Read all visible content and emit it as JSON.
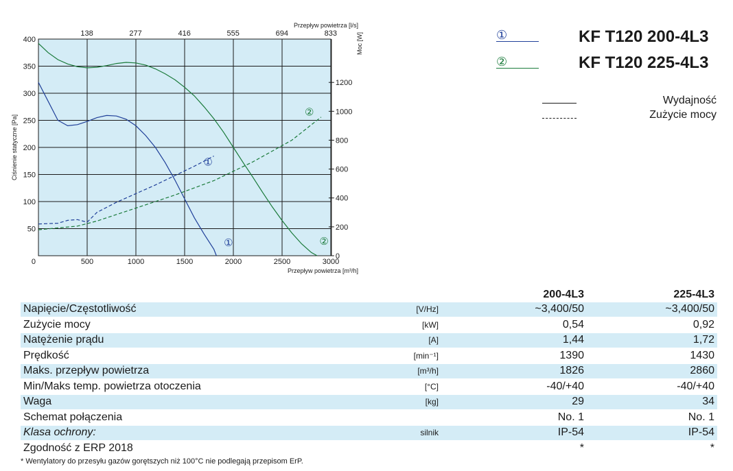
{
  "models": [
    {
      "marker": "①",
      "name": "KF T120 200-4L3",
      "color": "#1f3f99"
    },
    {
      "marker": "②",
      "name": "KF T120 225-4L3",
      "color": "#1a7a3a"
    }
  ],
  "legend": {
    "solid_label": "Wydajność",
    "dashed_label": "Zużycie mocy"
  },
  "chart_data": {
    "type": "line",
    "xlabel": "Przepływ powietrza [m³/h]",
    "x2label": "Przepływ powietrza [l/s]",
    "ylabel": "Ciśnienie statyczne [Pa]",
    "y2label": "Moc [W]",
    "xlim": [
      0,
      3000
    ],
    "ylim": [
      0,
      400
    ],
    "y2lim": [
      0,
      1500
    ],
    "x_ticks": [
      "0",
      "500",
      "1000",
      "1500",
      "2000",
      "2500",
      "3000"
    ],
    "x2_ticks": [
      "138",
      "277",
      "416",
      "555",
      "694",
      "833"
    ],
    "y_ticks": [
      "0",
      "50",
      "100",
      "150",
      "200",
      "250",
      "300",
      "350",
      "400"
    ],
    "y2_ticks": [
      "0",
      "200",
      "400",
      "600",
      "800",
      "1000",
      "1200"
    ],
    "grid": true,
    "background": "#d4ecf6",
    "series": [
      {
        "name": "①",
        "kind": "pressure",
        "style": "solid",
        "color": "#1f3f99",
        "x": [
          0,
          100,
          200,
          300,
          400,
          500,
          600,
          700,
          800,
          900,
          1000,
          1100,
          1200,
          1300,
          1400,
          1500,
          1600,
          1700,
          1800,
          1826
        ],
        "y": [
          320,
          285,
          250,
          240,
          242,
          248,
          255,
          259,
          258,
          252,
          240,
          222,
          200,
          172,
          140,
          105,
          70,
          40,
          12,
          0
        ]
      },
      {
        "name": "②",
        "kind": "pressure",
        "style": "solid",
        "color": "#1a7a3a",
        "x": [
          0,
          100,
          200,
          300,
          400,
          500,
          600,
          700,
          800,
          900,
          1000,
          1100,
          1200,
          1300,
          1400,
          1500,
          1600,
          1700,
          1800,
          1900,
          2000,
          2100,
          2200,
          2300,
          2400,
          2500,
          2600,
          2700,
          2800,
          2860
        ],
        "y": [
          392,
          375,
          362,
          354,
          349,
          347,
          348,
          351,
          355,
          357,
          356,
          352,
          345,
          336,
          325,
          311,
          295,
          275,
          253,
          228,
          200,
          172,
          145,
          117,
          90,
          65,
          42,
          22,
          6,
          0
        ]
      },
      {
        "name": "①",
        "kind": "power",
        "style": "dashed",
        "color": "#1f3f99",
        "x": [
          0,
          200,
          300,
          400,
          500,
          600,
          800,
          1000,
          1200,
          1400,
          1600,
          1800
        ],
        "y": [
          220,
          225,
          245,
          250,
          232,
          300,
          370,
          430,
          490,
          555,
          620,
          690
        ]
      },
      {
        "name": "②",
        "kind": "power",
        "style": "dashed",
        "color": "#1a7a3a",
        "x": [
          0,
          400,
          600,
          1000,
          1400,
          1800,
          2200,
          2600,
          2900
        ],
        "y": [
          180,
          205,
          240,
          330,
          420,
          520,
          650,
          800,
          960
        ]
      }
    ],
    "annotations": [
      {
        "text": "①",
        "x": 1740,
        "y": 195,
        "color": "#1f3f99"
      },
      {
        "text": "①",
        "x": 1950,
        "y": 18,
        "color": "#1f3f99"
      },
      {
        "text": "②",
        "x": 2780,
        "y": 303,
        "color": "#1a7a3a"
      },
      {
        "text": "②",
        "x": 2930,
        "y": 20,
        "color": "#1a7a3a"
      }
    ]
  },
  "table": {
    "headers": [
      "200-4L3",
      "225-4L3"
    ],
    "rows": [
      {
        "label": "Napięcie/Częstotliwość",
        "unit": "[V/Hz]",
        "v1": "~3,400/50",
        "v2": "~3,400/50"
      },
      {
        "label": "Zużycie mocy",
        "unit": "[kW]",
        "v1": "0,54",
        "v2": "0,92"
      },
      {
        "label": "Natężenie prądu",
        "unit": "[A]",
        "v1": "1,44",
        "v2": "1,72"
      },
      {
        "label": "Prędkość",
        "unit": "[min⁻¹]",
        "v1": "1390",
        "v2": "1430"
      },
      {
        "label": "Maks. przepływ powietrza",
        "unit": "[m³/h]",
        "v1": "1826",
        "v2": "2860"
      },
      {
        "label": "Min/Maks temp. powietrza otoczenia",
        "unit": "[°C]",
        "v1": "-40/+40",
        "v2": "-40/+40"
      },
      {
        "label": "Waga",
        "unit": "[kg]",
        "v1": "29",
        "v2": "34"
      },
      {
        "label": "Schemat połączenia",
        "unit": "",
        "v1": "No. 1",
        "v2": "No. 1"
      },
      {
        "label": "Klasa ochrony:",
        "unit": "silnik",
        "v1": "IP-54",
        "v2": "IP-54",
        "italic": true
      },
      {
        "label": "Zgodność z ERP 2018",
        "unit": "",
        "v1": "*",
        "v2": "*"
      }
    ]
  },
  "footnote": "* Wentylatory do przesyłu gazów gorętszych niż 100°C nie podlegają przepisom ErP."
}
